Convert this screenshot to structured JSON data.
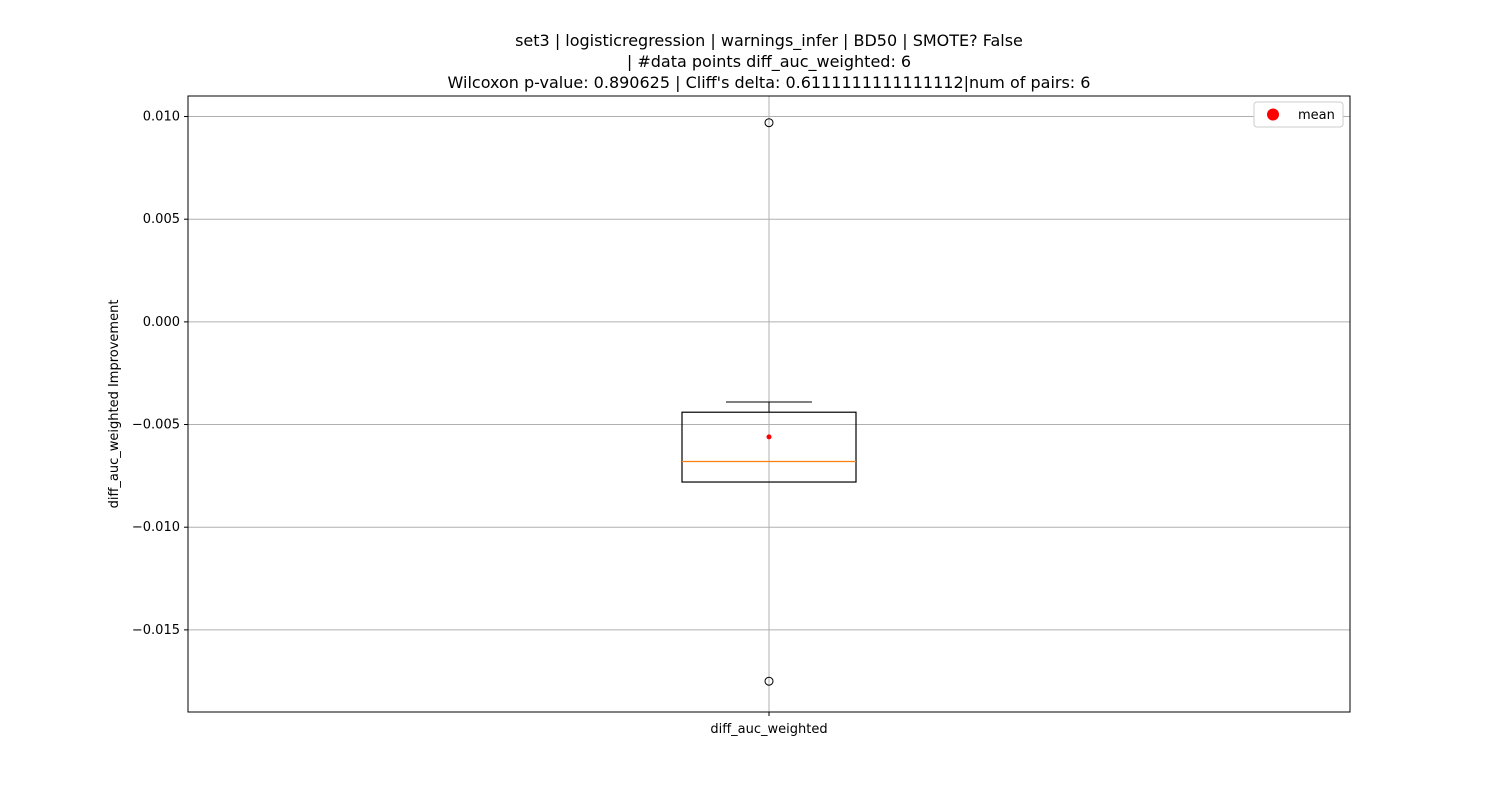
{
  "chart_data": {
    "type": "box",
    "title_lines": [
      "set3 | logisticregression | warnings_infer | BD50 | SMOTE? False",
      "| #data points diff_auc_weighted: 6",
      "Wilcoxon p-value: 0.890625 | Cliff's delta: 0.6111111111111112|num of pairs: 6"
    ],
    "xlabel": "",
    "ylabel": "diff_auc_weighted Improvement",
    "categories": [
      "diff_auc_weighted"
    ],
    "ylim": [
      -0.019,
      0.011
    ],
    "yticks": [
      0.01,
      0.005,
      0.0,
      -0.005,
      -0.01,
      -0.015
    ],
    "ytick_labels": [
      "0.010",
      "0.005",
      "0.000",
      "−0.005",
      "−0.010",
      "−0.015"
    ],
    "grid": true,
    "box": {
      "whisker_low": -0.0078,
      "q1": -0.0078,
      "median": -0.0068,
      "q3": -0.0044,
      "whisker_high": -0.0039,
      "mean": -0.0056,
      "outliers": [
        0.0097,
        -0.0175
      ]
    },
    "legend": {
      "position": "top-right",
      "entries": [
        {
          "label": "mean",
          "color": "#ff0000",
          "marker": "circle"
        }
      ]
    },
    "colors": {
      "box": "#000000",
      "median": "#ff7f0e",
      "mean": "#ff0000",
      "grid": "#b0b0b0"
    }
  }
}
